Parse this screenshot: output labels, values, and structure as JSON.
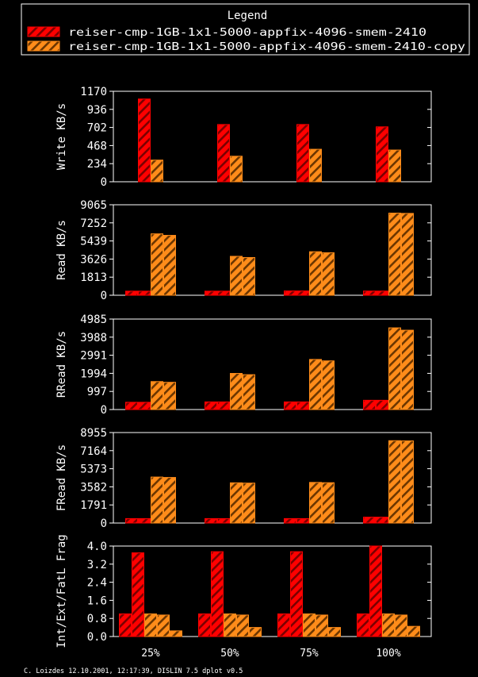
{
  "legend": {
    "title": "Legend",
    "entries": [
      {
        "label": "reiser-cmp-1GB-1x1-5000-appfix-4096-smem-2410",
        "color": "#ff0000"
      },
      {
        "label": "reiser-cmp-1GB-1x1-5000-appfix-4096-smem-2410-copy",
        "color": "#ff8c1a"
      }
    ]
  },
  "footer": "C. Loizdes 12.10.2001, 12:17:39, DISLIN 7.5 dplot v0.5",
  "colors": {
    "red": "#ff0000",
    "orange": "#ff8c1a",
    "stroke": "#7a0000",
    "axis": "#ffffff"
  },
  "chart_data": [
    {
      "type": "bar",
      "ylabel": "Write KB/s",
      "ylim": [
        0,
        1170
      ],
      "yticks": [
        "0",
        "234",
        "468",
        "702",
        "936",
        "1170"
      ],
      "categories": [
        "25%",
        "50%",
        "75%",
        "100%"
      ],
      "series": [
        {
          "name": "reiser-cmp-1GB-1x1-5000-appfix-4096-smem-2410",
          "values": [
            1070,
            740,
            740,
            710
          ]
        },
        {
          "name": "reiser-cmp-1GB-1x1-5000-appfix-4096-smem-2410-copy",
          "values": [
            280,
            330,
            420,
            410
          ]
        }
      ]
    },
    {
      "type": "bar",
      "ylabel": "Read KB/s",
      "ylim": [
        0,
        9065
      ],
      "yticks": [
        "0",
        "1813",
        "3626",
        "5439",
        "7252",
        "9065"
      ],
      "categories": [
        "25%",
        "50%",
        "75%",
        "100%"
      ],
      "series": [
        {
          "name": "reiser-cmp-1GB-1x1-5000-appfix-4096-smem-2410",
          "values": [
            410,
            410,
            430,
            420
          ]
        },
        {
          "name": "reiser-cmp-1GB-1x1-5000-appfix-4096-smem-2410",
          "values": [
            410,
            410,
            430,
            420
          ]
        },
        {
          "name": "reiser-cmp-1GB-1x1-5000-appfix-4096-smem-2410-copy",
          "values": [
            6150,
            3900,
            4360,
            8230
          ]
        },
        {
          "name": "reiser-cmp-1GB-1x1-5000-appfix-4096-smem-2410-copy",
          "values": [
            6000,
            3780,
            4260,
            8200
          ]
        }
      ]
    },
    {
      "type": "bar",
      "ylabel": "RRead KB/s",
      "ylim": [
        0,
        4985
      ],
      "yticks": [
        "0",
        "997",
        "1994",
        "2991",
        "3988",
        "4985"
      ],
      "categories": [
        "25%",
        "50%",
        "75%",
        "100%"
      ],
      "series": [
        {
          "name": "reiser-cmp-1GB-1x1-5000-appfix-4096-smem-2410",
          "values": [
            400,
            420,
            420,
            510
          ]
        },
        {
          "name": "reiser-cmp-1GB-1x1-5000-appfix-4096-smem-2410",
          "values": [
            400,
            420,
            420,
            510
          ]
        },
        {
          "name": "reiser-cmp-1GB-1x1-5000-appfix-4096-smem-2410-copy",
          "values": [
            1540,
            1990,
            2760,
            4500
          ]
        },
        {
          "name": "reiser-cmp-1GB-1x1-5000-appfix-4096-smem-2410-copy",
          "values": [
            1500,
            1920,
            2680,
            4370
          ]
        }
      ]
    },
    {
      "type": "bar",
      "ylabel": "FRead KB/s",
      "ylim": [
        0,
        8955
      ],
      "yticks": [
        "0",
        "1791",
        "3582",
        "5373",
        "7164",
        "8955"
      ],
      "categories": [
        "25%",
        "50%",
        "75%",
        "100%"
      ],
      "series": [
        {
          "name": "reiser-cmp-1GB-1x1-5000-appfix-4096-smem-2410",
          "values": [
            440,
            440,
            440,
            580
          ]
        },
        {
          "name": "reiser-cmp-1GB-1x1-5000-appfix-4096-smem-2410",
          "values": [
            440,
            440,
            440,
            580
          ]
        },
        {
          "name": "reiser-cmp-1GB-1x1-5000-appfix-4096-smem-2410-copy",
          "values": [
            4550,
            3980,
            4020,
            8150
          ]
        },
        {
          "name": "reiser-cmp-1GB-1x1-5000-appfix-4096-smem-2410-copy",
          "values": [
            4510,
            3950,
            3990,
            8130
          ]
        }
      ]
    },
    {
      "type": "bar",
      "ylabel": "Int/Ext/FatL Frag",
      "ylim": [
        0,
        4.0
      ],
      "yticks": [
        "0.0",
        "0.8",
        "1.6",
        "2.4",
        "3.2",
        "4.0"
      ],
      "categories": [
        "25%",
        "50%",
        "75%",
        "100%"
      ],
      "series": [
        {
          "name": "reiser-cmp-1GB-1x1-5000-appfix-4096-smem-2410",
          "values": [
            1.0,
            1.0,
            1.0,
            1.0
          ]
        },
        {
          "name": "reiser-cmp-1GB-1x1-5000-appfix-4096-smem-2410",
          "values": [
            3.7,
            3.75,
            3.75,
            4.0
          ]
        },
        {
          "name": "reiser-cmp-1GB-1x1-5000-appfix-4096-smem-2410-copy",
          "values": [
            1.0,
            1.0,
            1.0,
            1.0
          ]
        },
        {
          "name": "reiser-cmp-1GB-1x1-5000-appfix-4096-smem-2410-copy",
          "values": [
            0.95,
            0.95,
            0.95,
            0.95
          ]
        },
        {
          "name": "reiser-cmp-1GB-1x1-5000-appfix-4096-smem-2410-copy",
          "values": [
            0.25,
            0.4,
            0.4,
            0.45
          ]
        }
      ]
    }
  ]
}
